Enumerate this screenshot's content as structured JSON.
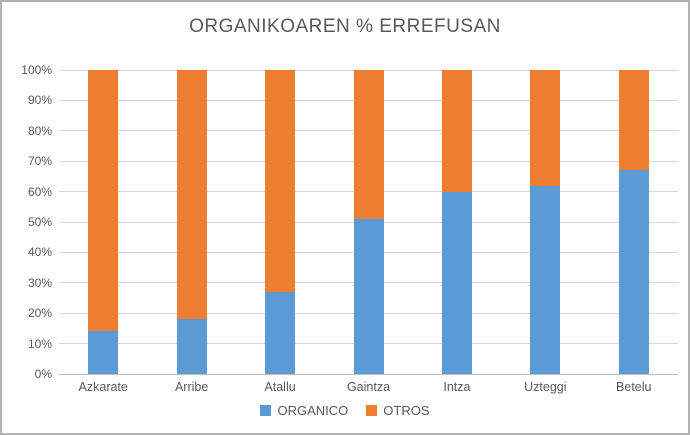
{
  "chart_data": {
    "type": "bar",
    "subtype": "stacked-100-percent",
    "title": "ORGANIKOAREN % ERREFUSAN",
    "categories": [
      "Azkarate",
      "Arribe",
      "Atallu",
      "Gaintza",
      "Intza",
      "Uzteggi",
      "Betelu"
    ],
    "series": [
      {
        "name": "ORGANICO",
        "color": "#5B9BD5",
        "values": [
          14,
          18,
          27,
          51,
          60,
          62,
          67
        ]
      },
      {
        "name": "OTROS",
        "color": "#ED7D31",
        "values": [
          86,
          82,
          73,
          49,
          40,
          38,
          33
        ]
      }
    ],
    "xlabel": "",
    "ylabel": "",
    "ylim": [
      0,
      100
    ],
    "ytick_step": 10,
    "ytick_suffix": "%",
    "grid": true,
    "legend_position": "bottom"
  },
  "colors": {
    "title_text": "#595959",
    "axis_text": "#595959",
    "gridline": "#d9d9d9",
    "axis_line": "#bfbfbf",
    "frame_border": "#b3b3b3",
    "background": "#ffffff"
  }
}
